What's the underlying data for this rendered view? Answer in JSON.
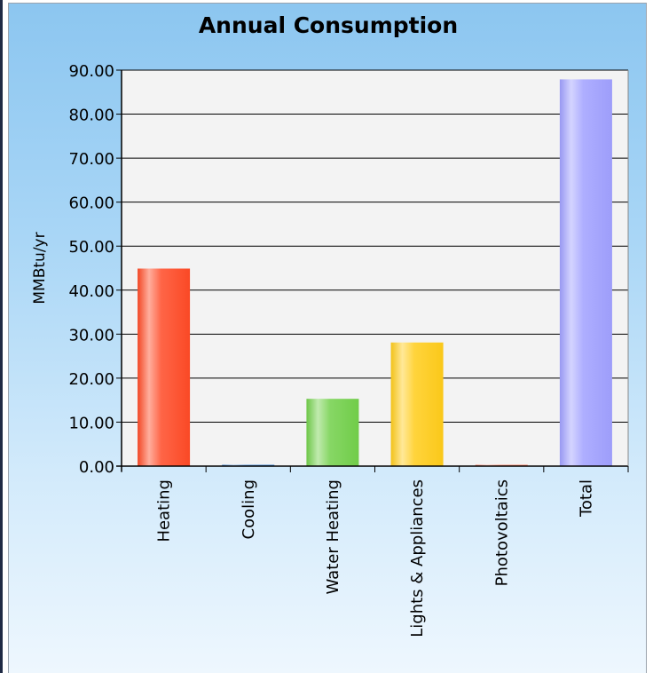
{
  "chart_data": {
    "type": "bar",
    "title": "Annual Consumption",
    "xlabel": "",
    "ylabel": "MMBtu/yr",
    "categories": [
      "Heating",
      "Cooling",
      "Water Heating",
      "Lights & Appliances",
      "Photovoltaics",
      "Total"
    ],
    "values": [
      44.9,
      0.3,
      15.3,
      28.1,
      0.2,
      87.9
    ],
    "ylim": [
      0,
      90
    ],
    "yticks": [
      "0.00",
      "10.00",
      "20.00",
      "30.00",
      "40.00",
      "50.00",
      "60.00",
      "70.00",
      "80.00",
      "90.00"
    ],
    "grid": true,
    "legend": "none",
    "bar_colors": [
      "#ff4a26",
      "#2f7fd6",
      "#72d04a",
      "#ffcc1a",
      "#ff7a5a",
      "#a0a0ff"
    ],
    "plot_background": "#f3f3f3"
  }
}
